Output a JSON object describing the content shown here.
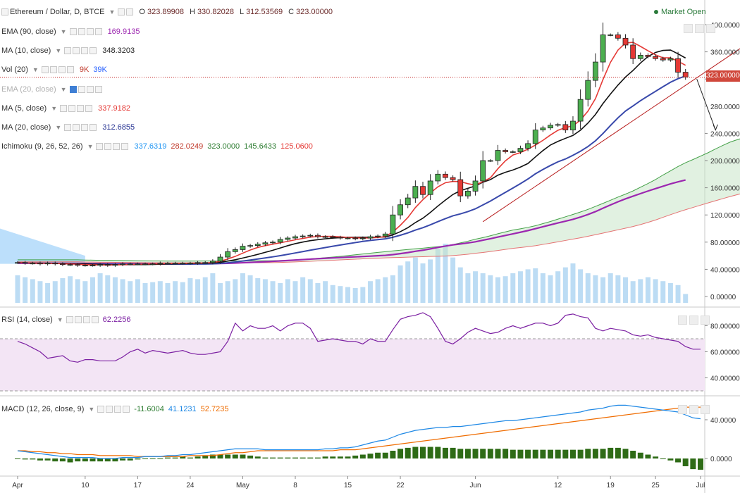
{
  "header": {
    "symbol": "Ethereum / Dollar, D, BTCE",
    "open_label": "O",
    "open": "323.89908",
    "high_label": "H",
    "high": "330.82028",
    "low_label": "L",
    "low": "312.53569",
    "close_label": "C",
    "close": "323.00000",
    "market_status": "Market Open"
  },
  "indicators": [
    {
      "name": "EMA (90, close)",
      "values": [
        "169.9135"
      ],
      "colors": [
        "#9c27b0"
      ],
      "faded": false
    },
    {
      "name": "MA (10, close)",
      "values": [
        "348.3203"
      ],
      "colors": [
        "#222222"
      ],
      "faded": false
    },
    {
      "name": "Vol (20)",
      "values": [
        "9K",
        "39K"
      ],
      "colors": [
        "#c0392b",
        "#2962ff"
      ],
      "faded": false
    },
    {
      "name": "EMA (20, close)",
      "values": [],
      "colors": [],
      "faded": true
    },
    {
      "name": "MA (5, close)",
      "values": [
        "337.9182"
      ],
      "colors": [
        "#e53935"
      ],
      "faded": false
    },
    {
      "name": "MA (20, close)",
      "values": [
        "312.6855"
      ],
      "colors": [
        "#283593"
      ],
      "faded": false
    },
    {
      "name": "Ichimoku (9, 26, 52, 26)",
      "values": [
        "337.6319",
        "282.0249",
        "323.0000",
        "145.6433",
        "125.0600"
      ],
      "colors": [
        "#2196f3",
        "#c0392b",
        "#2e7d32",
        "#2e7d32",
        "#e53935"
      ],
      "faded": false
    }
  ],
  "rsi_panel": {
    "name": "RSI (14, close)",
    "value": "62.2256",
    "value_color": "#7b1fa2"
  },
  "macd_panel": {
    "name": "MACD (12, 26, close, 9)",
    "values": [
      "-11.6004",
      "41.1231",
      "52.7235"
    ],
    "colors": [
      "#2e7d32",
      "#1e88e5",
      "#ef6c00"
    ]
  },
  "price_tag": "323.000000",
  "chart_data": [
    {
      "type": "candlestick",
      "title": "Ethereum / Dollar, D, BTCE",
      "x_tick_labels": [
        "Apr",
        "10",
        "17",
        "24",
        "May",
        "8",
        "15",
        "22",
        "Jun",
        "12",
        "19",
        "25",
        "Jul"
      ],
      "x_tick_days": [
        0,
        9,
        16,
        23,
        30,
        37,
        44,
        51,
        61,
        72,
        79,
        85,
        91
      ],
      "y_axis_labels": [
        "0.00000",
        "40.00000",
        "80.00000",
        "120.00000",
        "160.00000",
        "200.00000",
        "240.00000",
        "280.00000",
        "320.00000",
        "360.00000",
        "400.00000"
      ],
      "ylim": [
        -10,
        415
      ],
      "grid": false,
      "candles_day_close": [
        [
          0,
          50
        ],
        [
          1,
          49
        ],
        [
          2,
          49
        ],
        [
          3,
          48
        ],
        [
          4,
          49
        ],
        [
          5,
          48
        ],
        [
          6,
          47
        ],
        [
          7,
          47
        ],
        [
          8,
          46
        ],
        [
          9,
          46
        ],
        [
          10,
          46
        ],
        [
          11,
          47
        ],
        [
          12,
          46
        ],
        [
          13,
          47
        ],
        [
          14,
          48
        ],
        [
          15,
          48
        ],
        [
          16,
          48
        ],
        [
          17,
          48
        ],
        [
          18,
          48
        ],
        [
          19,
          49
        ],
        [
          20,
          49
        ],
        [
          21,
          49
        ],
        [
          22,
          49
        ],
        [
          23,
          49
        ],
        [
          24,
          50
        ],
        [
          25,
          50
        ],
        [
          26,
          52
        ],
        [
          27,
          58
        ],
        [
          28,
          66
        ],
        [
          29,
          69
        ],
        [
          30,
          74
        ],
        [
          31,
          75
        ],
        [
          32,
          77
        ],
        [
          33,
          79
        ],
        [
          34,
          80
        ],
        [
          35,
          84
        ],
        [
          36,
          86
        ],
        [
          37,
          88
        ],
        [
          38,
          89
        ],
        [
          39,
          90
        ],
        [
          40,
          88
        ],
        [
          41,
          88
        ],
        [
          42,
          87
        ],
        [
          43,
          86
        ],
        [
          44,
          86
        ],
        [
          45,
          85
        ],
        [
          46,
          86
        ],
        [
          47,
          88
        ],
        [
          48,
          89
        ],
        [
          49,
          92
        ],
        [
          50,
          120
        ],
        [
          51,
          135
        ],
        [
          52,
          145
        ],
        [
          53,
          162
        ],
        [
          54,
          150
        ],
        [
          55,
          170
        ],
        [
          56,
          180
        ],
        [
          57,
          175
        ],
        [
          58,
          172
        ],
        [
          59,
          148
        ],
        [
          60,
          155
        ],
        [
          61,
          170
        ],
        [
          62,
          200
        ],
        [
          63,
          200
        ],
        [
          64,
          215
        ],
        [
          65,
          213
        ],
        [
          66,
          213
        ],
        [
          67,
          218
        ],
        [
          68,
          225
        ],
        [
          69,
          245
        ],
        [
          70,
          248
        ],
        [
          71,
          252
        ],
        [
          72,
          253
        ],
        [
          73,
          245
        ],
        [
          74,
          258
        ],
        [
          75,
          290
        ],
        [
          76,
          318
        ],
        [
          77,
          345
        ],
        [
          78,
          385
        ],
        [
          79,
          385
        ],
        [
          80,
          380
        ],
        [
          81,
          370
        ],
        [
          82,
          350
        ],
        [
          83,
          355
        ],
        [
          84,
          353
        ],
        [
          85,
          350
        ],
        [
          86,
          348
        ],
        [
          87,
          350
        ],
        [
          88,
          330
        ],
        [
          89,
          323
        ]
      ],
      "overlays": {
        "ema90_end": 169.9135,
        "ma10_end": 348.3203,
        "ma5_end": 337.9182,
        "ma20_end": 312.6855,
        "ichimoku_span_a_end": 190,
        "ichimoku_span_b_end": 150
      },
      "trendline": {
        "from": [
          62,
          110
        ],
        "to": [
          99,
          385
        ]
      },
      "volume_k": [
        28,
        26,
        24,
        22,
        20,
        22,
        25,
        27,
        24,
        22,
        26,
        30,
        28,
        26,
        24,
        22,
        24,
        20,
        21,
        22,
        20,
        22,
        21,
        25,
        24,
        26,
        30,
        20,
        22,
        24,
        30,
        28,
        25,
        24,
        22,
        20,
        24,
        22,
        26,
        24,
        20,
        22,
        18,
        17,
        16,
        15,
        16,
        22,
        24,
        26,
        28,
        38,
        42,
        46,
        40,
        44,
        55,
        60,
        46,
        36,
        30,
        32,
        30,
        28,
        26,
        27,
        30,
        32,
        34,
        35,
        30,
        28,
        32,
        36,
        40,
        34,
        30,
        28,
        26,
        30,
        28,
        26,
        22,
        24,
        26,
        24,
        22,
        20,
        18,
        9
      ]
    },
    {
      "type": "line",
      "title": "RSI (14, close)",
      "y_axis_labels": [
        "40.00000",
        "60.00000",
        "80.00000"
      ],
      "ylim": [
        25,
        95
      ],
      "band": [
        30,
        70
      ],
      "series": [
        {
          "name": "RSI (14, close)",
          "values": [
            68,
            66,
            63,
            60,
            55,
            56,
            57,
            53,
            52,
            54,
            54,
            53,
            53,
            53,
            56,
            60,
            62,
            59,
            61,
            60,
            59,
            60,
            61,
            59,
            58,
            58,
            59,
            60,
            68,
            82,
            76,
            80,
            78,
            78,
            80,
            76,
            80,
            82,
            82,
            78,
            68,
            69,
            70,
            69,
            68,
            68,
            66,
            70,
            68,
            68,
            77,
            85,
            87,
            88,
            90,
            87,
            78,
            68,
            66,
            70,
            75,
            78,
            76,
            74,
            75,
            78,
            80,
            78,
            80,
            82,
            82,
            80,
            82,
            88,
            89,
            87,
            86,
            78,
            76,
            78,
            77,
            76,
            73,
            72,
            73,
            71,
            70,
            69,
            68,
            64,
            62,
            62
          ]
        }
      ]
    },
    {
      "type": "line",
      "title": "MACD (12, 26, close, 9)",
      "y_axis_labels": [
        "0.0000",
        "40.0000"
      ],
      "ylim": [
        -18,
        65
      ],
      "series": [
        {
          "name": "MACD",
          "values": [
            8,
            7,
            6,
            5,
            4,
            3,
            2,
            1,
            1,
            1,
            1,
            0,
            0,
            0,
            1,
            1,
            1,
            2,
            2,
            2,
            3,
            3,
            4,
            4,
            5,
            6,
            7,
            8,
            9,
            10,
            10,
            10,
            10,
            9,
            9,
            9,
            9,
            9,
            9,
            9,
            9,
            10,
            10,
            11,
            11,
            12,
            14,
            16,
            18,
            19,
            22,
            25,
            27,
            29,
            30,
            31,
            32,
            32,
            33,
            33,
            34,
            35,
            36,
            37,
            38,
            39,
            39,
            40,
            41,
            42,
            43,
            44,
            45,
            46,
            47,
            48,
            50,
            51,
            52,
            54,
            55,
            55,
            54,
            53,
            52,
            51,
            50,
            49,
            48,
            45,
            42,
            41
          ]
        },
        {
          "name": "Signal",
          "values": [
            8,
            8,
            7,
            7,
            6,
            6,
            5,
            5,
            4,
            4,
            4,
            3,
            3,
            3,
            3,
            3,
            2,
            2,
            2,
            2,
            2,
            2,
            2,
            3,
            3,
            3,
            3,
            4,
            5,
            6,
            6,
            7,
            8,
            8,
            8,
            8,
            8,
            8,
            8,
            8,
            8,
            8,
            8,
            9,
            9,
            9,
            10,
            11,
            12,
            13,
            14,
            15,
            16,
            17,
            18,
            19,
            20,
            21,
            22,
            23,
            24,
            25,
            26,
            27,
            28,
            29,
            30,
            31,
            32,
            33,
            34,
            35,
            36,
            37,
            38,
            39,
            40,
            41,
            42,
            43,
            44,
            45,
            46,
            47,
            48,
            49,
            50,
            51,
            52,
            53,
            53,
            53
          ]
        }
      ],
      "histogram": [
        0,
        -1,
        -1,
        -2,
        -2,
        -3,
        -3,
        -4,
        -3,
        -3,
        -3,
        -3,
        -3,
        -3,
        -2,
        -2,
        -1,
        0,
        0,
        0,
        1,
        1,
        2,
        1,
        2,
        3,
        4,
        4,
        4,
        4,
        4,
        3,
        2,
        1,
        1,
        1,
        1,
        1,
        1,
        1,
        1,
        2,
        2,
        2,
        2,
        3,
        4,
        5,
        6,
        6,
        8,
        10,
        11,
        12,
        12,
        12,
        12,
        11,
        11,
        10,
        10,
        10,
        10,
        10,
        10,
        10,
        9,
        9,
        9,
        9,
        9,
        9,
        9,
        9,
        9,
        9,
        10,
        10,
        10,
        11,
        11,
        10,
        8,
        6,
        4,
        2,
        0,
        -2,
        -4,
        -8,
        -11,
        -11.6
      ]
    }
  ]
}
